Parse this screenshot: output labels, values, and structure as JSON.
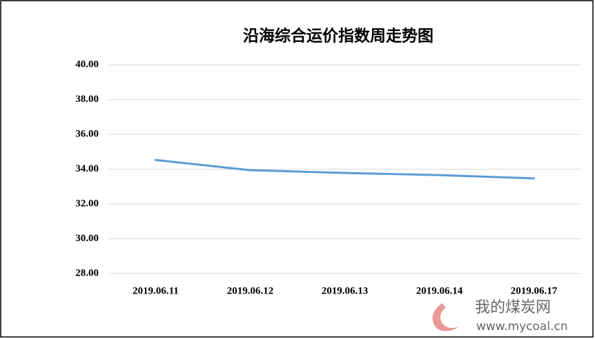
{
  "chart_data": {
    "type": "line",
    "title": "沿海综合运价指数周走势图",
    "categories": [
      "2019.06.11",
      "2019.06.12",
      "2019.06.13",
      "2019.06.14",
      "2019.06.17"
    ],
    "series": [
      {
        "name": "沿海综合运价指数",
        "color": "#5b9bd5",
        "values": [
          34.53,
          33.94,
          33.78,
          33.66,
          33.47
        ]
      }
    ],
    "ylim": [
      28,
      40
    ],
    "yticks": [
      {
        "value": 28,
        "label": "28.00"
      },
      {
        "value": 30,
        "label": "30.00"
      },
      {
        "value": 32,
        "label": "32.00"
      },
      {
        "value": 34,
        "label": "34.00"
      },
      {
        "value": 36,
        "label": "36.00"
      },
      {
        "value": 38,
        "label": "38.00"
      },
      {
        "value": 40,
        "label": "40.00"
      }
    ],
    "grid": true,
    "watermark": {
      "site": "我的煤炭网",
      "url": "www.mycoal.cn"
    }
  }
}
